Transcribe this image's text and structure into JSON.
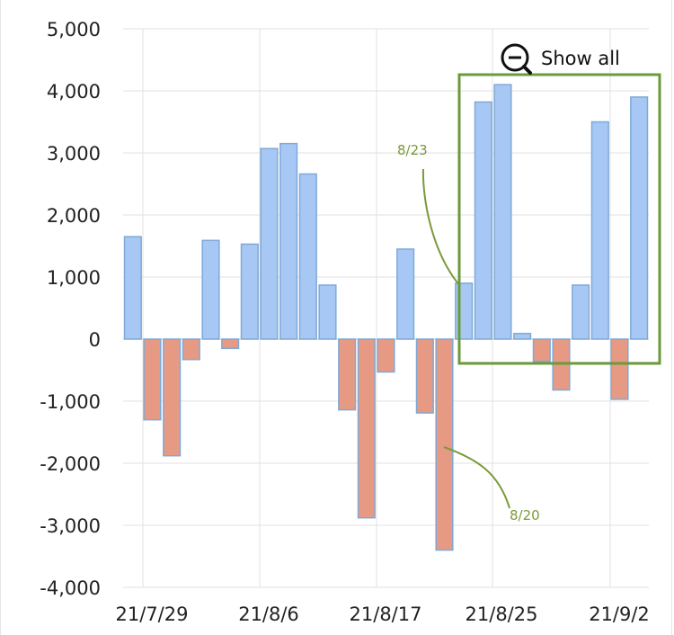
{
  "chart_data": {
    "type": "bar",
    "title": "",
    "xlabel": "",
    "ylabel": "",
    "ylim": [
      -4000,
      5000
    ],
    "y_ticks": [
      5000,
      4000,
      3000,
      2000,
      1000,
      0,
      -1000,
      -2000,
      -3000,
      -4000
    ],
    "y_tick_labels": [
      "5,000",
      "4,000",
      "3,000",
      "2,000",
      "1,000",
      "0",
      "-1,000",
      "-2,000",
      "-3,000",
      "-4,000"
    ],
    "x_tick_labels": [
      "21/7/29",
      "21/8/6",
      "21/8/17",
      "21/8/25",
      "21/9/2"
    ],
    "grid": true,
    "colors": {
      "positive": "#a7c8f4",
      "negative": "#e69a84",
      "bar_edge": "#7fa9d6",
      "annotation": "#7a9a3a",
      "zoom_box": "#6b9a3a"
    },
    "values": [
      1650,
      -1300,
      -1880,
      -330,
      1590,
      -150,
      1530,
      3070,
      3150,
      2660,
      870,
      -1140,
      -2880,
      -530,
      1450,
      -1190,
      -3400,
      900,
      3820,
      4100,
      90,
      -360,
      -820,
      870,
      3500,
      -970,
      3900
    ]
  },
  "annotations": [
    {
      "label": "8/23"
    },
    {
      "label": "8/20"
    }
  ],
  "zoom": {
    "label": "Show all",
    "icon": "zoom-out-icon"
  }
}
